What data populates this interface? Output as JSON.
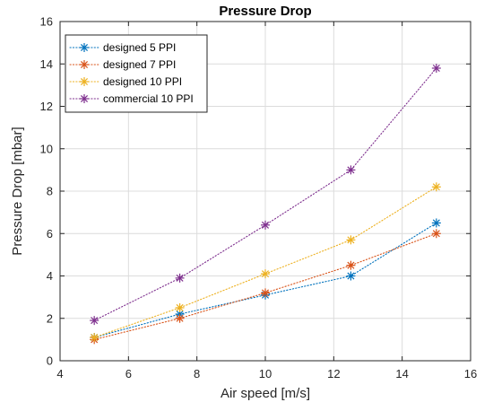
{
  "chart_data": {
    "type": "line",
    "title": "Pressure Drop",
    "xlabel": "Air speed [m/s]",
    "ylabel": "Pressure Drop [mbar]",
    "xlim": [
      4,
      16
    ],
    "ylim": [
      0,
      16
    ],
    "xticks": [
      4,
      6,
      8,
      10,
      12,
      14,
      16
    ],
    "yticks": [
      0,
      2,
      4,
      6,
      8,
      10,
      12,
      14,
      16
    ],
    "grid": true,
    "legend_position": "top-left",
    "x": [
      5,
      7.5,
      10,
      12.5,
      15
    ],
    "series": [
      {
        "name": "designed 5 PPI",
        "color": "#0072BD",
        "values": [
          1.1,
          2.2,
          3.1,
          4.0,
          6.5
        ]
      },
      {
        "name": "designed 7 PPI",
        "color": "#D95319",
        "values": [
          1.0,
          2.0,
          3.2,
          4.5,
          6.0
        ]
      },
      {
        "name": "designed 10 PPI",
        "color": "#EDB120",
        "values": [
          1.1,
          2.5,
          4.1,
          5.7,
          8.2
        ]
      },
      {
        "name": "commercial 10 PPI",
        "color": "#7E2F8E",
        "values": [
          1.9,
          3.9,
          6.4,
          9.0,
          13.8
        ]
      }
    ]
  }
}
